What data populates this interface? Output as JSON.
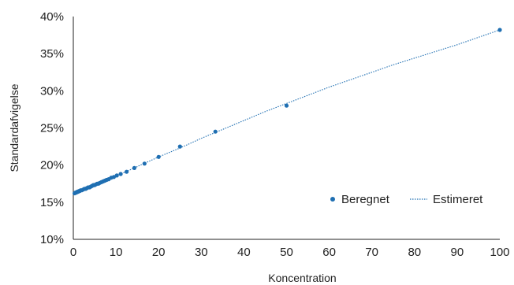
{
  "chart_data": {
    "type": "scatter",
    "xlabel": "Koncentration",
    "ylabel": "Standardafvigelse",
    "xlim": [
      0,
      100
    ],
    "ylim": [
      0.1,
      0.4
    ],
    "x_ticks": [
      "0",
      "10",
      "20",
      "30",
      "40",
      "50",
      "60",
      "70",
      "80",
      "90",
      "100"
    ],
    "y_ticks": [
      "10%",
      "15%",
      "20%",
      "25%",
      "30%",
      "35%",
      "40%"
    ],
    "grid": false,
    "legend_position": "center-right",
    "colors": {
      "series": "#1f6fb2",
      "axis": "#222222",
      "text": "#222222"
    },
    "series": [
      {
        "name": "Beregnet",
        "style": "points",
        "x": [
          0.3,
          0.5,
          0.7,
          0.9,
          1.1,
          1.3,
          1.5,
          1.7,
          2.0,
          2.3,
          2.6,
          2.9,
          3.2,
          3.5,
          3.8,
          4.1,
          4.4,
          4.7,
          5.0,
          5.3,
          5.6,
          5.9,
          6.2,
          6.6,
          7.0,
          7.4,
          7.8,
          8.3,
          8.9,
          9.5,
          10.2,
          11.1,
          12.5,
          14.3,
          16.7,
          20.0,
          25.0,
          33.3,
          50.0,
          100.0
        ],
        "y": [
          0.162,
          0.163,
          0.163,
          0.164,
          0.164,
          0.165,
          0.165,
          0.166,
          0.166,
          0.167,
          0.168,
          0.168,
          0.169,
          0.17,
          0.17,
          0.171,
          0.172,
          0.173,
          0.173,
          0.174,
          0.175,
          0.175,
          0.176,
          0.177,
          0.178,
          0.179,
          0.18,
          0.181,
          0.183,
          0.184,
          0.186,
          0.188,
          0.191,
          0.196,
          0.202,
          0.211,
          0.225,
          0.245,
          0.28,
          0.382
        ]
      },
      {
        "name": "Estimeret",
        "style": "dotted-line",
        "x": [
          0,
          5,
          10,
          15,
          20,
          25,
          30,
          35,
          40,
          45,
          50,
          55,
          60,
          65,
          70,
          75,
          80,
          85,
          90,
          95,
          100
        ],
        "y": [
          0.161,
          0.173,
          0.185,
          0.198,
          0.211,
          0.223,
          0.236,
          0.248,
          0.26,
          0.272,
          0.283,
          0.294,
          0.305,
          0.315,
          0.325,
          0.335,
          0.344,
          0.353,
          0.362,
          0.372,
          0.382
        ]
      }
    ]
  }
}
